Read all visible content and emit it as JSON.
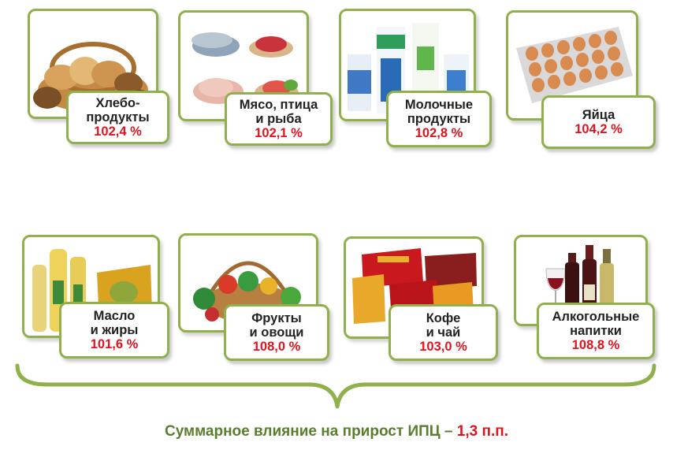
{
  "items": [
    {
      "name": "Хлебо-\nпродукты",
      "value": "102,4 %",
      "icon": "bread-basket-icon"
    },
    {
      "name": "Мясо, птица\nи рыба",
      "value": "102,1 %",
      "icon": "meat-fish-icon"
    },
    {
      "name": "Молочные\nпродукты",
      "value": "102,8 %",
      "icon": "dairy-icon"
    },
    {
      "name": "Яйца",
      "value": "104,2 %",
      "icon": "eggs-icon"
    },
    {
      "name": "Масло\nи жиры",
      "value": "101,6 %",
      "icon": "oil-bottles-icon"
    },
    {
      "name": "Фрукты\nи овощи",
      "value": "108,0 %",
      "icon": "vegetables-basket-icon"
    },
    {
      "name": "Кофе\nи чай",
      "value": "103,0 %",
      "icon": "coffee-tea-icon"
    },
    {
      "name": "Алкогольные\nнапитки",
      "value": "108,8 %",
      "icon": "wine-bottles-icon"
    }
  ],
  "summary": {
    "text": "Суммарное влияние на прирост ИПЦ – ",
    "value": "1,3 п.п."
  },
  "colors": {
    "frame": "#8fb04a",
    "value": "#e0141e",
    "summary_text": "#5a7d2e"
  }
}
